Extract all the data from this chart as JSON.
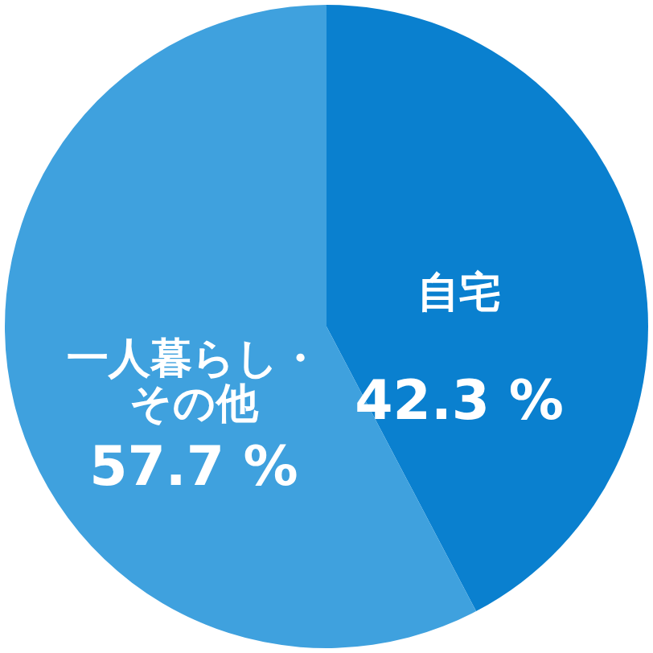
{
  "chart_data": {
    "type": "pie",
    "categories": [
      "自宅",
      "一人暮らし・その他"
    ],
    "values": [
      42.3,
      57.7
    ],
    "colors": [
      "#0a80cf",
      "#3fa1de"
    ],
    "value_labels": [
      "42.3 %",
      "57.7 %"
    ],
    "legend": false
  }
}
